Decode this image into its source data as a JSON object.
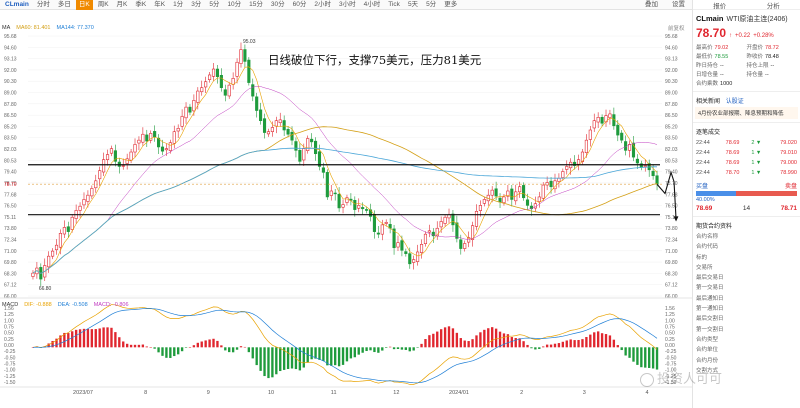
{
  "toolbar": {
    "symbol": "CLmain",
    "items": [
      "分时",
      "多日",
      "日K",
      "周K",
      "月K",
      "季K",
      "年K",
      "1分",
      "3分",
      "5分",
      "10分",
      "15分",
      "30分",
      "60分",
      "2小时",
      "3小时",
      "4小时",
      "Tick",
      "5天",
      "5分",
      "更多"
    ],
    "active_index": 2,
    "right_a": "叠加",
    "right_b": "设置"
  },
  "ma_indicator": {
    "label": "MA",
    "items": [
      {
        "name": "MA60",
        "value": "81.401",
        "color": "#d4a017"
      },
      {
        "name": "MA144",
        "value": "77.370",
        "color": "#1f7fd6"
      },
      {
        "name": "",
        "value": "",
        "color": "#999999"
      }
    ],
    "fav_label": "前复权"
  },
  "macd_indicator": {
    "label": "MACD",
    "items": [
      {
        "name": "DIF",
        "value": "-0.888",
        "color": "#e8a200"
      },
      {
        "name": "DEA",
        "value": "-0.508",
        "color": "#1f7fd6"
      },
      {
        "name": "MACD",
        "value": "-0.806",
        "color": "#c03bc0"
      }
    ]
  },
  "annotation": "日线破位下行，支撑75美元，压力81美元",
  "chart_data": [
    {
      "type": "candlestick",
      "title": "",
      "ylim": [
        65.5,
        96.2
      ],
      "y_ticks": [
        "95.68",
        "94.60",
        "93.13",
        "92.00",
        "90.30",
        "89.00",
        "87.80",
        "86.50",
        "85.20",
        "83.50",
        "82.03",
        "80.53",
        "79.40",
        "78.70",
        "77.68",
        "76.50",
        "75.11",
        "73.80",
        "72.34",
        "71.00",
        "69.80",
        "68.30",
        "67.12",
        "66.00"
      ],
      "x_labels": [
        "2023/07",
        "8",
        "9",
        "10",
        "11",
        "12",
        "2024/01",
        "2",
        "3",
        "4"
      ],
      "annotations": {
        "high_label": "95.03",
        "low_label": "66.80",
        "current_price": "78.70"
      },
      "horizontal_lines": [
        81.0,
        75.1
      ],
      "close_series": [
        68.2,
        68.8,
        67.5,
        69.1,
        70.2,
        70.8,
        71.5,
        72.9,
        73.6,
        73.1,
        74.8,
        75.6,
        76.1,
        76.9,
        77.4,
        78.2,
        79.1,
        80.3,
        81.6,
        82.2,
        82.9,
        81.4,
        80.8,
        80.9,
        81.7,
        82.5,
        83.4,
        83.9,
        84.6,
        83.8,
        84.7,
        84.3,
        83.1,
        82.6,
        82.9,
        83.6,
        84.9,
        85.3,
        86.7,
        87.8,
        87.2,
        88.6,
        89.7,
        90.1,
        90.8,
        91.6,
        92.3,
        91.4,
        90.1,
        89.2,
        90.4,
        91.2,
        93.1,
        94.6,
        93.2,
        90.7,
        89.1,
        87.4,
        86.2,
        84.8,
        84.9,
        85.4,
        86.2,
        86.3,
        85.1,
        84.6,
        83.9,
        82.7,
        81.4,
        82.9,
        84.1,
        83.7,
        82.3,
        80.8,
        80.1,
        77.2,
        77.9,
        77.6,
        75.9,
        76.3,
        77.1,
        76.8,
        75.7,
        76.2,
        75.8,
        75.6,
        74.9,
        73.1,
        72.8,
        73.9,
        74.2,
        73.5,
        71.2,
        71.8,
        70.9,
        70.5,
        69.3,
        69.8,
        70.7,
        71.6,
        72.8,
        73.2,
        72.6,
        73.5,
        74.3,
        74.8,
        75.1,
        73.9,
        72.3,
        71.1,
        71.7,
        72.4,
        73.8,
        75.5,
        76.2,
        76.9,
        77.4,
        78.0,
        77.3,
        76.6,
        77.2,
        77.9,
        76.9,
        77.8,
        78.4,
        77.1,
        76.2,
        75.8,
        76.4,
        77.2,
        78.6,
        78.9,
        78.4,
        79.1,
        79.4,
        80.2,
        80.8,
        81.3,
        80.9,
        81.6,
        82.5,
        83.9,
        85.1,
        86.2,
        86.6,
        85.9,
        86.8,
        87.0,
        85.6,
        84.5,
        83.9,
        82.7,
        83.4,
        81.9,
        81.2,
        80.7,
        80.9,
        80.4,
        79.7,
        78.7
      ]
    },
    {
      "type": "macd",
      "ylim": [
        -1.5,
        1.7
      ],
      "y_ticks": [
        "1.56",
        "1.25",
        "1.00",
        "0.75",
        "0.50",
        "0.25",
        "0.00",
        "-0.25",
        "-0.50",
        "-0.75",
        "-1.00",
        "-1.25",
        "-1.50"
      ]
    }
  ],
  "panel": {
    "tab_a": "报价",
    "tab_b": "分析",
    "code": "CLmain",
    "name": "WTI原油主连(2406)",
    "price": "78.70",
    "arrow": "↑",
    "change": "+0.22",
    "change_pct": "+0.28%",
    "stats": [
      {
        "label": "最高价",
        "value": "79.02",
        "cls": "red"
      },
      {
        "label": "开盘价",
        "value": "78.72",
        "cls": "red"
      },
      {
        "label": "最低价",
        "value": "78.55",
        "cls": "green"
      },
      {
        "label": "昨收价",
        "value": "78.48",
        "cls": ""
      },
      {
        "label": "昨日持仓",
        "value": "--",
        "cls": ""
      },
      {
        "label": "持仓上限",
        "value": "--",
        "cls": ""
      },
      {
        "label": "日增仓量",
        "value": "--",
        "cls": ""
      },
      {
        "label": "持仓量",
        "value": "--",
        "cls": ""
      },
      {
        "label": "合约乘数",
        "value": "1000",
        "cls": ""
      },
      {
        "label": "",
        "value": "",
        "cls": ""
      }
    ],
    "news_title": "相关新闻",
    "news_tag": "认股证",
    "news_item": "4月份农业部报期、降息预期和降低",
    "ticks_title": "逐笔成交",
    "ticks": [
      {
        "time": "22:44",
        "price": "78.69",
        "qty": "2",
        "vol": "79.020",
        "cls": "red"
      },
      {
        "time": "22:44",
        "price": "78.69",
        "qty": "1",
        "vol": "79.010",
        "cls": "red"
      },
      {
        "time": "22:44",
        "price": "78.69",
        "qty": "1",
        "vol": "79.000",
        "cls": "red"
      },
      {
        "time": "22:44",
        "price": "78.70",
        "qty": "1",
        "vol": "78.990",
        "cls": "red"
      }
    ],
    "buy_label": "买盘",
    "sell_label": "卖盘",
    "buy_pct_label": "40.00%",
    "buy_pct": 0.4,
    "bid": "78.69",
    "bid_count": "14",
    "ask": "78.71",
    "contract_title": "期货合约资料",
    "contract_items": [
      "合约名称",
      "合约代码",
      "标的",
      "交易所",
      "最后交易日",
      "第一交易日",
      "最后通知日",
      "第一通知日",
      "最后交割日",
      "第一交割日",
      "合约类型",
      "合约单位",
      "合约月份",
      "交割方式"
    ]
  },
  "watermark": "投资人可可"
}
